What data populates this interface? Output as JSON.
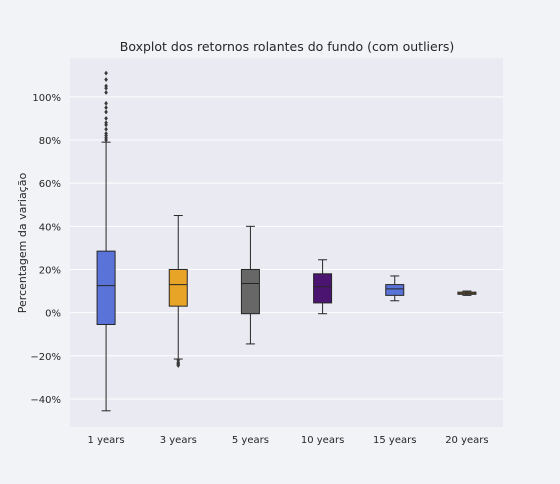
{
  "chart_data": {
    "type": "box",
    "title": "Boxplot dos retornos rolantes do fundo (com outliers)",
    "xlabel": "",
    "ylabel": "Percentagem da variação",
    "ylim": [
      -53,
      118
    ],
    "y_ticks": [
      -40,
      -20,
      0,
      20,
      40,
      60,
      80,
      100
    ],
    "y_tick_labels": [
      "−40%",
      "−20%",
      "0%",
      "20%",
      "40%",
      "60%",
      "80%",
      "100%"
    ],
    "grid": true,
    "legend": "none",
    "categories": [
      "1 years",
      "3 years",
      "5 years",
      "10 years",
      "15 years",
      "20 years"
    ],
    "boxes": [
      {
        "category": "1 years",
        "whisker_low": -45.5,
        "q1": -5.5,
        "median": 12.5,
        "q3": 28.5,
        "whisker_high": 79,
        "outliers": [
          80,
          81,
          82,
          83,
          85,
          87,
          88,
          90,
          93,
          95,
          97,
          102,
          104,
          105,
          108,
          111
        ],
        "color": "#5a73d8"
      },
      {
        "category": "3 years",
        "whisker_low": -21.5,
        "q1": 3,
        "median": 13,
        "q3": 20,
        "whisker_high": 45,
        "outliers": [
          -22,
          -23,
          -23.5,
          -24,
          -24.5
        ],
        "color": "#e8a427"
      },
      {
        "category": "5 years",
        "whisker_low": -14.5,
        "q1": -0.5,
        "median": 13.5,
        "q3": 20,
        "whisker_high": 40,
        "outliers": [],
        "color": "#676767"
      },
      {
        "category": "10 years",
        "whisker_low": -0.5,
        "q1": 4.5,
        "median": 12,
        "q3": 18,
        "whisker_high": 24.5,
        "outliers": [],
        "color": "#4b1470"
      },
      {
        "category": "15 years",
        "whisker_low": 5.5,
        "q1": 8,
        "median": 11,
        "q3": 13,
        "whisker_high": 17,
        "outliers": [],
        "color": "#5a73d8"
      },
      {
        "category": "20 years",
        "whisker_low": 8,
        "q1": 8.5,
        "median": 9,
        "q3": 9.5,
        "whisker_high": 10,
        "outliers": [],
        "color": "#e8a427"
      }
    ]
  }
}
